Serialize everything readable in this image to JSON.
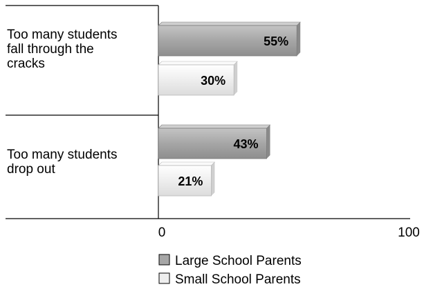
{
  "chart_data": {
    "type": "bar",
    "orientation": "horizontal",
    "categories": [
      "Too many students fall through the cracks",
      "Too many students drop out"
    ],
    "category_lines": [
      [
        "Too many students",
        "fall through the",
        "cracks"
      ],
      [
        "Too many students",
        "drop out"
      ]
    ],
    "series": [
      {
        "name": "Large School Parents",
        "values": [
          55,
          43
        ],
        "labels": [
          "55%",
          "43%"
        ]
      },
      {
        "name": "Small School Parents",
        "values": [
          30,
          21
        ],
        "labels": [
          "30%",
          "21%"
        ]
      }
    ],
    "xlim": [
      0,
      100
    ],
    "x_tick_labels": [
      "0",
      "100"
    ],
    "legend_position": "bottom",
    "grid": false,
    "colors": {
      "Large School Parents": "#a6a6a6",
      "Small School Parents": "#eeeeee"
    }
  }
}
